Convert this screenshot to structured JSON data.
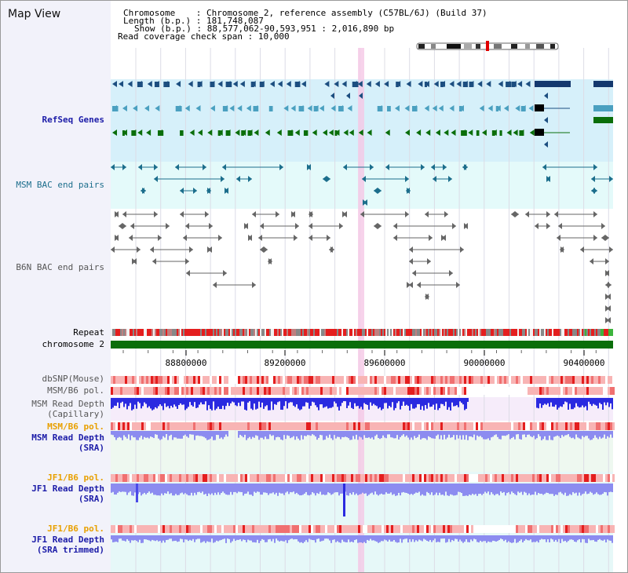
{
  "window": {
    "title": "Map View"
  },
  "info": {
    "chromosome_label": "Chromosome",
    "chromosome_value": "Chromosome 2, reference assembly (C57BL/6J) (Build 37)",
    "length_label": "Length (b.p.)",
    "length_value": "181,748,087",
    "show_label": "Show (b.p.)",
    "show_value": "88,577,062-90,593,951 : 2,016,890 bp",
    "span_label": "Read coverage check span",
    "span_value": "10,000"
  },
  "tracks": {
    "refseq": "RefSeq Genes",
    "msm_bac": "MSM BAC end pairs",
    "b6n_bac": "B6N BAC end pairs",
    "repeat": "Repeat",
    "chromosome": "chromosome 2",
    "dbsnp": "dbSNP(Mouse)",
    "msm_b6_pol_1": "MSM/B6 pol.",
    "msm_read_depth_cap_1": "MSM Read Depth",
    "msm_read_depth_cap_2": "(Capillary)",
    "msm_b6_pol_2": "MSM/B6 pol.",
    "msm_read_depth_sra_1": "MSM Read Depth",
    "msm_read_depth_sra_2": "(SRA)",
    "jf1_b6_pol_1": "JF1/B6 pol.",
    "jf1_read_depth_sra_1": "JF1 Read Depth",
    "jf1_read_depth_sra_2": "(SRA)",
    "jf1_b6_pol_2": "JF1/B6 pol.",
    "jf1_read_depth_trim_1": "JF1 Read Depth",
    "jf1_read_depth_trim_2": "(SRA trimmed)"
  },
  "axis": {
    "ticks": [
      "88800000",
      "89200000",
      "89600000",
      "90000000",
      "90400000"
    ]
  },
  "colors": {
    "refseq_bg": "#d6f0fa",
    "msm_bac_bg": "#e4fafa",
    "chromosome_bar": "#0a6e0a",
    "pol_high": "#e41e1e",
    "depth_blue": "#2a2ae0",
    "depth_sra": "#8c8cf0",
    "highlight": "#f5c8e6",
    "label_blue": "#1c1ca8",
    "label_orange": "#e8a000",
    "label_teal": "#1c6e8c",
    "label_gray": "#555555"
  }
}
